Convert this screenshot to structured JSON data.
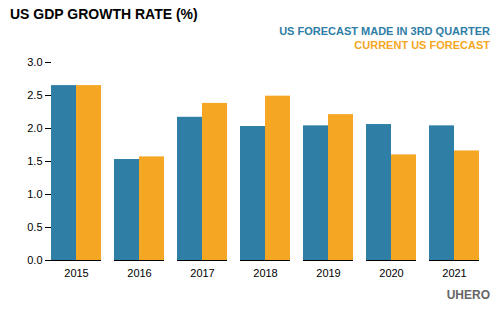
{
  "chart_data": {
    "type": "bar",
    "title": "US GDP GROWTH RATE (%)",
    "categories": [
      "2015",
      "2016",
      "2017",
      "2018",
      "2019",
      "2020",
      "2021"
    ],
    "series": [
      {
        "name": "US FORECAST MADE IN 3RD QUARTER",
        "color": "#2E7EA6",
        "values": [
          2.65,
          1.53,
          2.17,
          2.03,
          2.04,
          2.06,
          2.04
        ]
      },
      {
        "name": "CURRENT US FORECAST",
        "color": "#F5A623",
        "values": [
          2.65,
          1.57,
          2.38,
          2.49,
          2.21,
          1.6,
          1.66
        ]
      }
    ],
    "ylim": [
      0,
      3.0
    ],
    "yticks": [
      {
        "value": 0,
        "label": "0.0"
      },
      0.5,
      {
        "value": 1,
        "label": "1.0"
      },
      1.5,
      {
        "value": 2,
        "label": "2.0"
      },
      2.5,
      {
        "value": 3,
        "label": "3.0"
      }
    ],
    "grid": false,
    "legend": "upper right",
    "annotations": [
      "UHERO"
    ]
  }
}
